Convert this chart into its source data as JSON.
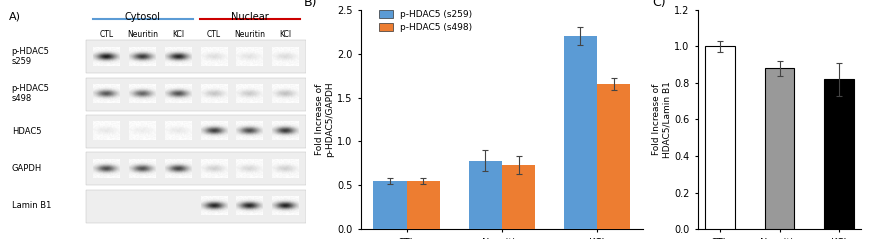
{
  "panel_b": {
    "title": "B)",
    "categories": [
      "CTL",
      "Neuritin",
      "KCl"
    ],
    "s259_values": [
      0.55,
      0.78,
      2.2
    ],
    "s498_values": [
      0.55,
      0.73,
      1.65
    ],
    "s259_errors": [
      0.03,
      0.12,
      0.1
    ],
    "s498_errors": [
      0.03,
      0.1,
      0.07
    ],
    "s259_color": "#5B9BD5",
    "s498_color": "#ED7D31",
    "ylabel": "Fold Increase of\np-HDAC5/GAPDH",
    "ylim": [
      0,
      2.5
    ],
    "yticks": [
      0,
      0.5,
      1.0,
      1.5,
      2.0,
      2.5
    ],
    "legend_labels": [
      "p-HDAC5 (s259)",
      "p-HDAC5 (s498)"
    ]
  },
  "panel_c": {
    "title": "C)",
    "categories": [
      "CTL",
      "Neuritin",
      "KCl"
    ],
    "values": [
      1.0,
      0.88,
      0.82
    ],
    "errors": [
      0.03,
      0.04,
      0.09
    ],
    "bar_colors": [
      "#ffffff",
      "#999999",
      "#000000"
    ],
    "bar_edgecolors": [
      "#000000",
      "#000000",
      "#000000"
    ],
    "ylabel": "Fold Increase of\nHDAC5/Lamin B1",
    "ylim": [
      0,
      1.2
    ],
    "yticks": [
      0,
      0.2,
      0.4,
      0.6,
      0.8,
      1.0,
      1.2
    ]
  },
  "panel_a": {
    "title": "A)",
    "cytosol_label": "Cytosol",
    "nuclear_label": "Nuclear",
    "cytosol_color": "#5B9BD5",
    "nuclear_color": "#CC0000",
    "col_labels": [
      "CTL",
      "Neuritin",
      "KCl",
      "CTL",
      "Neuritin",
      "KCl"
    ],
    "row_labels": [
      "p-HDAC5\ns259",
      "p-HDAC5\ns498",
      "HDAC5",
      "GAPDH",
      "Lamin B1"
    ],
    "band_intensities": [
      [
        0.92,
        0.8,
        0.88,
        0.12,
        0.1,
        0.13
      ],
      [
        0.68,
        0.62,
        0.7,
        0.22,
        0.2,
        0.24
      ],
      [
        0.08,
        0.06,
        0.08,
        0.78,
        0.72,
        0.8
      ],
      [
        0.72,
        0.7,
        0.75,
        0.18,
        0.15,
        0.18
      ],
      [
        0.03,
        0.03,
        0.03,
        0.88,
        0.88,
        0.9
      ]
    ]
  },
  "background_color": "#ffffff"
}
